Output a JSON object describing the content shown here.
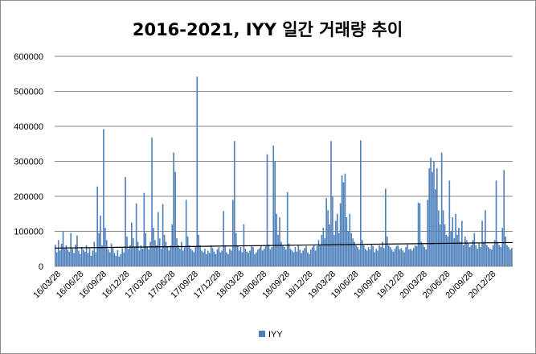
{
  "chart_data": {
    "type": "bar",
    "title": "2016-2021, IYY 일간 거래량 추이",
    "xlabel": "",
    "ylabel": "",
    "ylim": [
      0,
      600000
    ],
    "y_ticks": [
      0,
      100000,
      200000,
      300000,
      400000,
      500000,
      600000
    ],
    "y_tick_labels": [
      "0",
      "100000",
      "200000",
      "300000",
      "400000",
      "500000",
      "600000"
    ],
    "x_tick_labels": [
      "16/03/28",
      "16/06/28",
      "16/09/28",
      "16/12/28",
      "17/03/28",
      "17/06/28",
      "17/09/28",
      "17/12/28",
      "18/03/28",
      "18/06/28",
      "18/09/28",
      "18/12/28",
      "19/03/28",
      "19/06/28",
      "19/09/28",
      "19/12/28",
      "20/03/28",
      "20/06/28",
      "20/09/28",
      "20/12/28"
    ],
    "grid": true,
    "legend_position": "bottom",
    "trendline": {
      "type": "linear",
      "start": 52000,
      "end": 68000
    },
    "series": [
      {
        "name": "IYY",
        "color": "#4f81bd",
        "x_start": "16/03/28",
        "values": [
          62000,
          40000,
          75000,
          45000,
          65000,
          100000,
          50000,
          60000,
          48000,
          42000,
          95000,
          50000,
          38000,
          62000,
          88000,
          45000,
          35000,
          55000,
          48000,
          42000,
          60000,
          38000,
          52000,
          30000,
          45000,
          70000,
          40000,
          228000,
          95000,
          145000,
          60000,
          392000,
          110000,
          75000,
          48000,
          40000,
          65000,
          52000,
          38000,
          30000,
          46000,
          28000,
          35000,
          52000,
          40000,
          255000,
          85000,
          50000,
          60000,
          125000,
          80000,
          55000,
          180000,
          70000,
          45000,
          60000,
          50000,
          210000,
          95000,
          55000,
          48000,
          70000,
          368000,
          110000,
          75000,
          60000,
          155000,
          80000,
          50000,
          178000,
          90000,
          70000,
          55000,
          45000,
          60000,
          120000,
          325000,
          270000,
          80000,
          60000,
          50000,
          70000,
          45000,
          55000,
          190000,
          85000,
          60000,
          50000,
          45000,
          40000,
          55000,
          542000,
          90000,
          60000,
          45000,
          40000,
          50000,
          35000,
          45000,
          38000,
          60000,
          52000,
          42000,
          35000,
          48000,
          55000,
          40000,
          45000,
          158000,
          60000,
          40000,
          35000,
          50000,
          45000,
          190000,
          358000,
          95000,
          60000,
          45000,
          55000,
          40000,
          120000,
          50000,
          42000,
          38000,
          45000,
          60000,
          55000,
          35000,
          40000,
          48000,
          52000,
          60000,
          45000,
          50000,
          58000,
          320000,
          62000,
          48000,
          55000,
          345000,
          300000,
          150000,
          90000,
          140000,
          70000,
          60000,
          55000,
          48000,
          212000,
          65000,
          50000,
          45000,
          40000,
          55000,
          42000,
          60000,
          48000,
          38000,
          45000,
          52000,
          58000,
          40000,
          35000,
          48000,
          55000,
          62000,
          45000,
          58000,
          75000,
          60000,
          90000,
          110000,
          80000,
          195000,
          160000,
          120000,
          358000,
          200000,
          90000,
          130000,
          150000,
          95000,
          180000,
          260000,
          240000,
          265000,
          140000,
          100000,
          150000,
          95000,
          80000,
          70000,
          60000,
          55000,
          48000,
          360000,
          75000,
          60000,
          50000,
          45000,
          55000,
          48000,
          62000,
          58000,
          40000,
          50000,
          45000,
          60000,
          55000,
          70000,
          52000,
          222000,
          85000,
          60000,
          55000,
          48000,
          42000,
          50000,
          58000,
          60000,
          48000,
          52000,
          45000,
          40000,
          55000,
          62000,
          48000,
          50000,
          45000,
          52000,
          60000,
          58000,
          182000,
          180000,
          70000,
          62000,
          55000,
          48000,
          190000,
          280000,
          310000,
          270000,
          300000,
          220000,
          280000,
          160000,
          120000,
          325000,
          160000,
          120000,
          90000,
          85000,
          245000,
          100000,
          140000,
          80000,
          150000,
          90000,
          110000,
          70000,
          130000,
          60000,
          85000,
          75000,
          65000,
          55000,
          60000,
          75000,
          95000,
          60000,
          50000,
          65000,
          55000,
          130000,
          70000,
          160000,
          60000,
          55000,
          50000,
          48000,
          60000,
          75000,
          245000,
          70000,
          60000,
          55000,
          110000,
          275000,
          85000,
          60000,
          55000,
          48000,
          52000
        ]
      }
    ]
  }
}
